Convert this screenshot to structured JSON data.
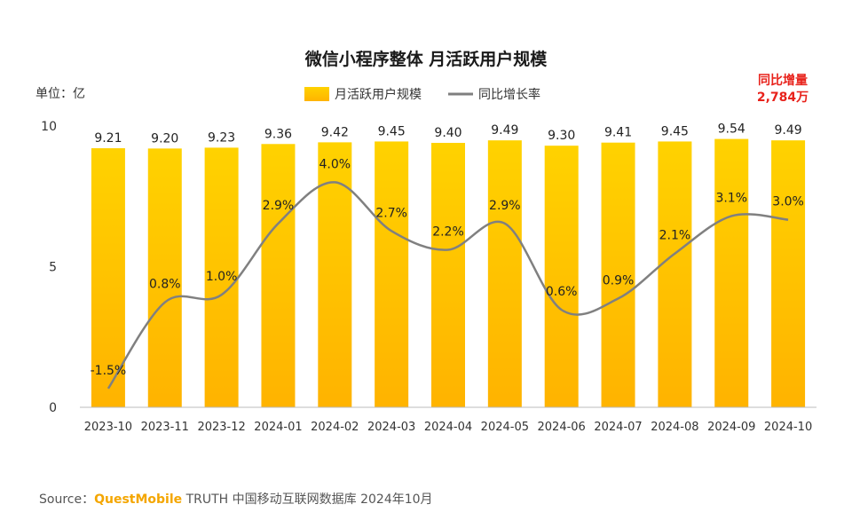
{
  "chart_data": {
    "type": "bar",
    "title": "微信小程序整体 月活跃用户规模",
    "unit_label": "单位：亿",
    "categories": [
      "2023-10",
      "2023-11",
      "2023-12",
      "2024-01",
      "2024-02",
      "2024-03",
      "2024-04",
      "2024-05",
      "2024-06",
      "2024-07",
      "2024-08",
      "2024-09",
      "2024-10"
    ],
    "series": [
      {
        "name": "月活跃用户规模",
        "type": "bar",
        "color": "#ffc400",
        "values": [
          9.21,
          9.2,
          9.23,
          9.36,
          9.42,
          9.45,
          9.4,
          9.49,
          9.3,
          9.41,
          9.45,
          9.54,
          9.49
        ],
        "labels": [
          "9.21",
          "9.20",
          "9.23",
          "9.36",
          "9.42",
          "9.45",
          "9.40",
          "9.49",
          "9.30",
          "9.41",
          "9.45",
          "9.54",
          "9.49"
        ]
      },
      {
        "name": "同比增长率",
        "type": "line",
        "color": "#7f7f7f",
        "values": [
          -1.5,
          0.8,
          1.0,
          2.9,
          4.0,
          2.7,
          2.2,
          2.9,
          0.6,
          0.9,
          2.1,
          3.1,
          3.0
        ],
        "labels": [
          "-1.5%",
          "0.8%",
          "1.0%",
          "2.9%",
          "4.0%",
          "2.7%",
          "2.2%",
          "2.9%",
          "0.6%",
          "0.9%",
          "2.1%",
          "3.1%",
          "3.0%"
        ]
      }
    ],
    "y_ticks": [
      "0",
      "5",
      "10"
    ],
    "ylim": [
      0,
      10
    ],
    "y2lim": [
      -2,
      5.5
    ],
    "legend_position": "top-center",
    "annotation": {
      "line1": "同比增量",
      "line2": "2,784万",
      "color": "#e8221b"
    },
    "grid": false
  },
  "source": {
    "prefix": "Source：",
    "brand": "QuestMobile",
    "rest": " TRUTH 中国移动互联网数据库 2024年10月"
  }
}
